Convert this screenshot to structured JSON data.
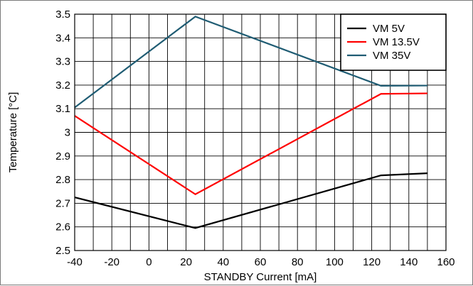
{
  "chart_data": {
    "type": "line",
    "xlabel": "STANDBY Current [mA]",
    "ylabel": "Temperature [°C]",
    "xlim": [
      -40,
      160
    ],
    "ylim": [
      2.5,
      3.5
    ],
    "x_ticks": [
      -40,
      -20,
      0,
      20,
      40,
      60,
      80,
      100,
      120,
      140,
      160
    ],
    "x_tick_labels": [
      "-40",
      "-20",
      "0",
      "20",
      "40",
      "60",
      "80",
      "100",
      "120",
      "140",
      "160"
    ],
    "y_ticks": [
      2.5,
      2.6,
      2.7,
      2.8,
      2.9,
      3.0,
      3.1,
      3.2,
      3.3,
      3.4,
      3.5
    ],
    "y_tick_labels": [
      "2.5",
      "2.6",
      "2.7",
      "2.8",
      "2.9",
      "3",
      "3.1",
      "3.2",
      "3.3",
      "3.4",
      "3.5"
    ],
    "x_minor_step": 10,
    "grid": true,
    "legend_position": "top-right",
    "series": [
      {
        "name": "VM 5V",
        "color": "#000000",
        "x": [
          -40,
          25,
          125,
          150
        ],
        "y": [
          2.725,
          2.595,
          2.818,
          2.827
        ]
      },
      {
        "name": "VM 13.5V",
        "color": "#ff0000",
        "x": [
          -40,
          25,
          125,
          150
        ],
        "y": [
          3.07,
          2.738,
          3.163,
          3.165
        ]
      },
      {
        "name": "VM 35V",
        "color": "#1f5c73",
        "x": [
          -40,
          25,
          125,
          150
        ],
        "y": [
          3.105,
          3.49,
          3.197,
          3.198
        ]
      }
    ]
  }
}
